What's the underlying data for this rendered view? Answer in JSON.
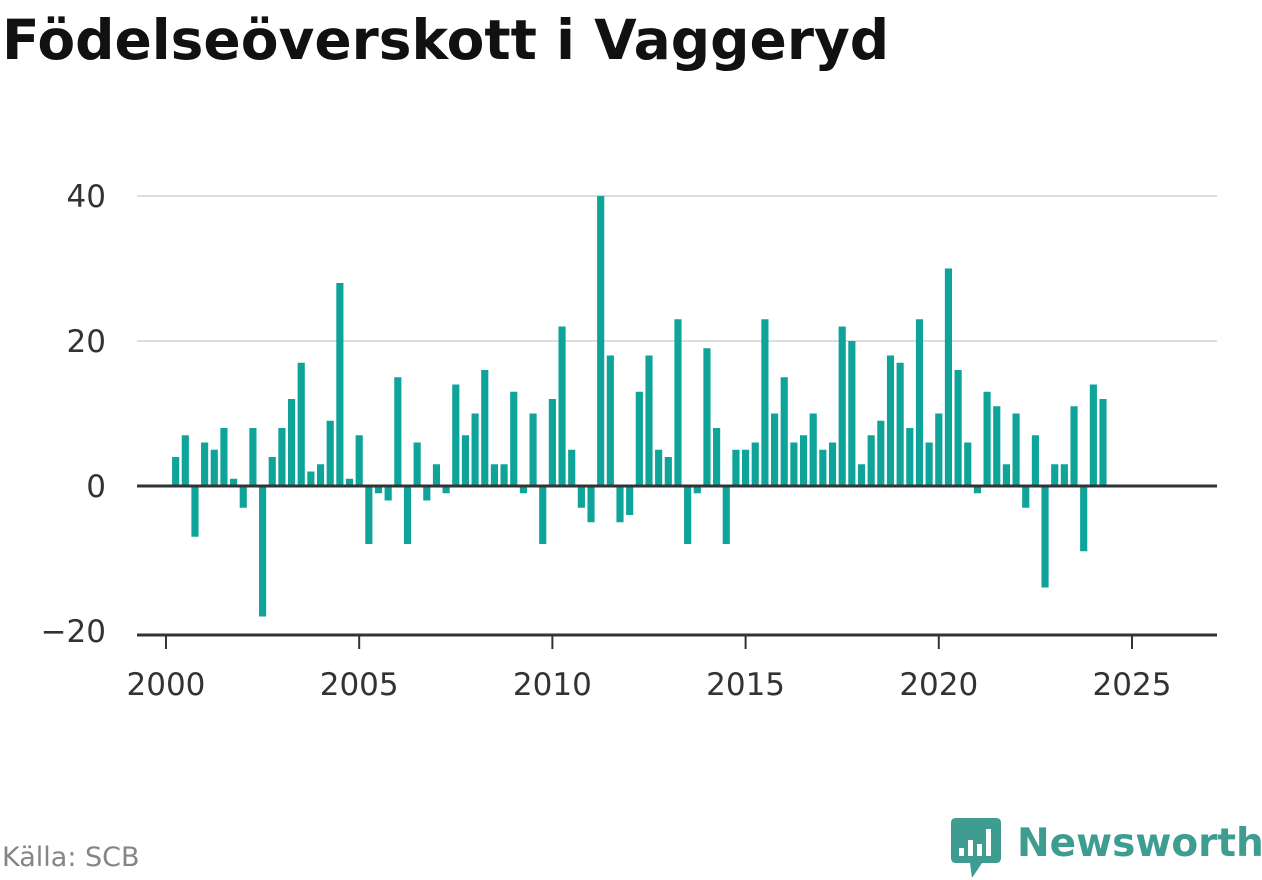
{
  "title": "Födelseöverskott i Vaggeryd",
  "source": "Källa: SCB",
  "logo_text": "Newsworthy",
  "colors": {
    "bar": "#0fa49a",
    "grid": "#dddddd",
    "zero_line": "#333333",
    "axis": "#333333",
    "logo": "#3e9c91",
    "source_text": "#858585"
  },
  "chart_data": {
    "type": "bar",
    "frequency": "quarterly",
    "x_start": 2000.25,
    "x_step": 0.25,
    "values": [
      4,
      7,
      -7,
      6,
      5,
      8,
      1,
      -3,
      8,
      -18,
      4,
      8,
      12,
      17,
      2,
      3,
      9,
      28,
      1,
      7,
      -8,
      -1,
      -2,
      15,
      -8,
      6,
      -2,
      3,
      -1,
      14,
      7,
      10,
      16,
      3,
      3,
      13,
      -1,
      10,
      -8,
      12,
      22,
      5,
      -3,
      -5,
      40,
      18,
      -5,
      -4,
      13,
      18,
      5,
      4,
      23,
      -8,
      -1,
      19,
      8,
      -8,
      5,
      5,
      6,
      23,
      10,
      15,
      6,
      7,
      10,
      5,
      6,
      22,
      20,
      3,
      7,
      9,
      18,
      17,
      8,
      23,
      6,
      10,
      30,
      16,
      6,
      -1,
      13,
      11,
      3,
      10,
      -3,
      7,
      -14,
      3,
      3,
      11,
      -9,
      14,
      12
    ],
    "xlim": [
      1999.25,
      2027.2
    ],
    "ylim": [
      -20,
      40
    ],
    "x_ticks": [
      2000,
      2005,
      2010,
      2015,
      2020,
      2025
    ],
    "y_ticks": [
      -20,
      0,
      20,
      40
    ],
    "y_tick_labels": [
      "−20",
      "0",
      "20",
      "40"
    ],
    "grid": true
  }
}
